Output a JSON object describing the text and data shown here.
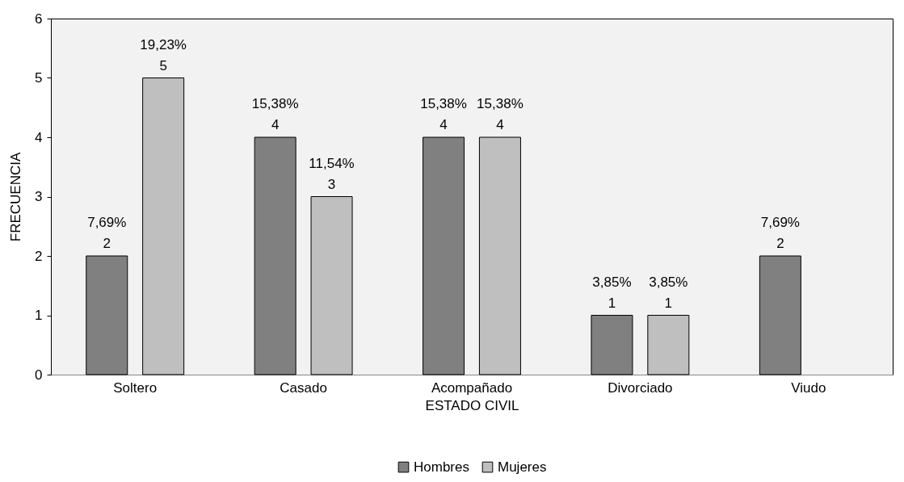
{
  "chart_data": {
    "type": "bar",
    "xlabel": "ESTADO CIVIL",
    "ylabel": "FRECUENCIA",
    "categories": [
      "Soltero",
      "Casado",
      "Acompañado",
      "Divorciado",
      "Viudo"
    ],
    "series": [
      {
        "name": "Hombres",
        "color": "#808080",
        "values": [
          2,
          4,
          4,
          1,
          2
        ],
        "value_labels": [
          "7,69%\n2",
          "15,38%\n4",
          "15,38%\n4",
          "3,85%\n1",
          "7,69%\n2"
        ]
      },
      {
        "name": "Mujeres",
        "color": "#bfbfbf",
        "values": [
          5,
          3,
          4,
          1,
          null
        ],
        "value_labels": [
          "19,23%\n5",
          "11,54%\n3",
          "15,38%\n4",
          "3,85%\n1",
          null
        ]
      }
    ],
    "ylim": [
      0,
      6
    ],
    "yticks": [
      0,
      1,
      2,
      3,
      4,
      5,
      6
    ],
    "grid": false,
    "legend": "bottom"
  }
}
